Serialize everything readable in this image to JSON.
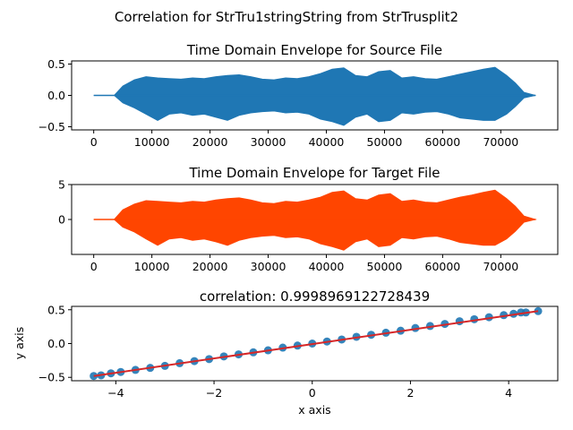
{
  "figure": {
    "suptitle": "Correlation for StrTru1stringString from StrTrusplit2"
  },
  "chart_data": [
    {
      "type": "area",
      "title": "Time Domain Envelope for Source File",
      "xlabel": "",
      "ylabel": "",
      "xlim": [
        -3800,
        79800
      ],
      "ylim": [
        -0.55,
        0.55
      ],
      "xticks": [
        0,
        10000,
        20000,
        30000,
        40000,
        50000,
        60000,
        70000
      ],
      "yticks": [
        -0.5,
        0.0,
        0.5
      ],
      "ytick_labels": [
        "−0.5",
        "0.0",
        "0.5"
      ],
      "series": [
        {
          "color": "#1f77b4",
          "x": [
            0,
            3500,
            5000,
            7000,
            9000,
            11000,
            13000,
            15000,
            17000,
            19000,
            21000,
            23000,
            25000,
            27000,
            29000,
            31000,
            33000,
            35000,
            37000,
            39000,
            41000,
            43000,
            45000,
            47000,
            49000,
            51000,
            53000,
            55000,
            57000,
            59000,
            61000,
            63000,
            65000,
            67000,
            69000,
            71000,
            72500,
            74000,
            76000
          ],
          "upper": [
            0,
            0,
            0.15,
            0.25,
            0.3,
            0.28,
            0.27,
            0.26,
            0.28,
            0.27,
            0.3,
            0.32,
            0.33,
            0.3,
            0.26,
            0.25,
            0.28,
            0.27,
            0.3,
            0.35,
            0.42,
            0.44,
            0.32,
            0.3,
            0.38,
            0.4,
            0.28,
            0.3,
            0.27,
            0.26,
            0.3,
            0.34,
            0.38,
            0.42,
            0.45,
            0.32,
            0.2,
            0.05,
            0
          ],
          "lower": [
            0,
            0,
            -0.12,
            -0.2,
            -0.3,
            -0.4,
            -0.3,
            -0.28,
            -0.32,
            -0.3,
            -0.35,
            -0.4,
            -0.32,
            -0.28,
            -0.26,
            -0.25,
            -0.28,
            -0.27,
            -0.3,
            -0.38,
            -0.42,
            -0.48,
            -0.35,
            -0.3,
            -0.42,
            -0.4,
            -0.28,
            -0.3,
            -0.27,
            -0.26,
            -0.3,
            -0.36,
            -0.38,
            -0.4,
            -0.4,
            -0.3,
            -0.18,
            -0.04,
            0
          ]
        }
      ]
    },
    {
      "type": "area",
      "title": "Time Domain Envelope for Target File",
      "xlabel": "",
      "ylabel": "",
      "xlim": [
        -3800,
        79800
      ],
      "ylim": [
        -5.0,
        5.0
      ],
      "xticks": [
        0,
        10000,
        20000,
        30000,
        40000,
        50000,
        60000,
        70000
      ],
      "yticks": [
        0,
        5
      ],
      "ytick_labels": [
        "0",
        "5"
      ],
      "series": [
        {
          "color": "#ff4500",
          "x": [
            0,
            3500,
            5000,
            7000,
            9000,
            11000,
            13000,
            15000,
            17000,
            19000,
            21000,
            23000,
            25000,
            27000,
            29000,
            31000,
            33000,
            35000,
            37000,
            39000,
            41000,
            43000,
            45000,
            47000,
            49000,
            51000,
            53000,
            55000,
            57000,
            59000,
            61000,
            63000,
            65000,
            67000,
            69000,
            71000,
            72500,
            74000,
            76000
          ],
          "upper": [
            0,
            0,
            1.4,
            2.2,
            2.7,
            2.6,
            2.5,
            2.4,
            2.6,
            2.5,
            2.8,
            3.0,
            3.1,
            2.8,
            2.4,
            2.3,
            2.6,
            2.5,
            2.8,
            3.2,
            3.9,
            4.1,
            3.0,
            2.8,
            3.5,
            3.7,
            2.6,
            2.8,
            2.5,
            2.4,
            2.8,
            3.2,
            3.5,
            3.9,
            4.2,
            3.0,
            1.9,
            0.5,
            0
          ],
          "lower": [
            0,
            0,
            -1.1,
            -1.8,
            -2.8,
            -3.7,
            -2.8,
            -2.6,
            -3.0,
            -2.8,
            -3.2,
            -3.7,
            -3.0,
            -2.6,
            -2.4,
            -2.3,
            -2.6,
            -2.5,
            -2.8,
            -3.5,
            -3.9,
            -4.4,
            -3.2,
            -2.8,
            -3.9,
            -3.7,
            -2.6,
            -2.8,
            -2.5,
            -2.4,
            -2.8,
            -3.3,
            -3.5,
            -3.7,
            -3.7,
            -2.8,
            -1.7,
            -0.4,
            0
          ]
        }
      ]
    },
    {
      "type": "scatter",
      "title": "correlation: 0.9998969122728439",
      "xlabel": "x axis",
      "ylabel": "y axis",
      "xlim": [
        -4.9,
        5.0
      ],
      "ylim": [
        -0.55,
        0.55
      ],
      "xticks": [
        -4,
        -2,
        0,
        2,
        4
      ],
      "xtick_labels": [
        "−4",
        "−2",
        "0",
        "2",
        "4"
      ],
      "yticks": [
        -0.5,
        0.0,
        0.5
      ],
      "ytick_labels": [
        "−0.5",
        "0.0",
        "0.5"
      ],
      "points": {
        "color": "#1f77b4",
        "x": [
          -4.45,
          -4.3,
          -4.1,
          -3.9,
          -3.6,
          -3.3,
          -3.0,
          -2.7,
          -2.4,
          -2.1,
          -1.8,
          -1.5,
          -1.2,
          -0.9,
          -0.6,
          -0.3,
          0.0,
          0.3,
          0.6,
          0.9,
          1.2,
          1.5,
          1.8,
          2.1,
          2.4,
          2.7,
          3.0,
          3.3,
          3.6,
          3.9,
          4.1,
          4.25,
          4.35,
          4.6
        ],
        "y": [
          -0.48,
          -0.47,
          -0.44,
          -0.42,
          -0.39,
          -0.36,
          -0.33,
          -0.29,
          -0.26,
          -0.23,
          -0.19,
          -0.16,
          -0.13,
          -0.1,
          -0.06,
          -0.03,
          0.0,
          0.03,
          0.06,
          0.1,
          0.13,
          0.16,
          0.19,
          0.23,
          0.26,
          0.29,
          0.33,
          0.36,
          0.39,
          0.42,
          0.44,
          0.46,
          0.46,
          0.48
        ]
      },
      "fit_line": {
        "color": "#d62728",
        "x": [
          -4.45,
          4.6
        ],
        "y": [
          -0.48,
          0.48
        ]
      }
    }
  ]
}
